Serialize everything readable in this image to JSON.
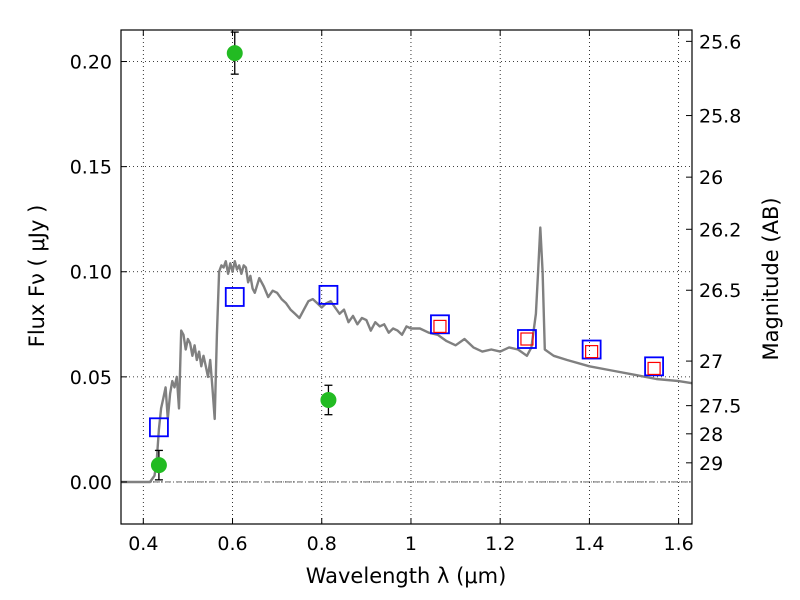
{
  "chart_data": {
    "type": "scatter",
    "xlabel": "Wavelength  λ (μm)",
    "ylabel": "Flux  Fν  ( μJy )",
    "ylabel_right": "Magnitude (AB)",
    "xlim": [
      0.35,
      1.63
    ],
    "ylim": [
      -0.02,
      0.215
    ],
    "grid": true,
    "x_ticks": [
      {
        "value": 0.4,
        "label": "0.4"
      },
      {
        "value": 0.6,
        "label": "0.6"
      },
      {
        "value": 0.8,
        "label": "0.8"
      },
      {
        "value": 1.0,
        "label": "1"
      },
      {
        "value": 1.2,
        "label": "1.2"
      },
      {
        "value": 1.4,
        "label": "1.4"
      },
      {
        "value": 1.6,
        "label": "1.6"
      }
    ],
    "y_ticks": [
      {
        "value": 0.0,
        "label": "0.00"
      },
      {
        "value": 0.05,
        "label": "0.05"
      },
      {
        "value": 0.1,
        "label": "0.10"
      },
      {
        "value": 0.15,
        "label": "0.15"
      },
      {
        "value": 0.2,
        "label": "0.20"
      }
    ],
    "right_ticks": [
      {
        "label": "25.6",
        "flux": 0.2096
      },
      {
        "label": "25.8",
        "flux": 0.1743
      },
      {
        "label": "26",
        "flux": 0.145
      },
      {
        "label": "26.2",
        "flux": 0.1202
      },
      {
        "label": "26.5",
        "flux": 0.0912
      },
      {
        "label": "27",
        "flux": 0.0575
      },
      {
        "label": "27.5",
        "flux": 0.0363
      },
      {
        "label": "28",
        "flux": 0.0229
      },
      {
        "label": "29",
        "flux": 0.0091
      }
    ],
    "model_sed": {
      "color": "#808080",
      "x": [
        0.35,
        0.4,
        0.415,
        0.425,
        0.43,
        0.435,
        0.44,
        0.445,
        0.45,
        0.455,
        0.46,
        0.465,
        0.47,
        0.475,
        0.48,
        0.485,
        0.49,
        0.495,
        0.5,
        0.505,
        0.51,
        0.515,
        0.52,
        0.525,
        0.53,
        0.535,
        0.54,
        0.545,
        0.55,
        0.555,
        0.56,
        0.565,
        0.57,
        0.575,
        0.58,
        0.585,
        0.59,
        0.595,
        0.6,
        0.605,
        0.61,
        0.615,
        0.62,
        0.625,
        0.63,
        0.635,
        0.64,
        0.645,
        0.65,
        0.66,
        0.67,
        0.68,
        0.69,
        0.7,
        0.71,
        0.72,
        0.73,
        0.74,
        0.75,
        0.76,
        0.77,
        0.78,
        0.79,
        0.8,
        0.81,
        0.82,
        0.83,
        0.84,
        0.85,
        0.86,
        0.87,
        0.88,
        0.89,
        0.9,
        0.91,
        0.92,
        0.93,
        0.94,
        0.95,
        0.96,
        0.97,
        0.98,
        0.99,
        1.0,
        1.02,
        1.04,
        1.06,
        1.08,
        1.1,
        1.12,
        1.14,
        1.16,
        1.18,
        1.2,
        1.22,
        1.24,
        1.26,
        1.27,
        1.28,
        1.285,
        1.29,
        1.295,
        1.3,
        1.32,
        1.35,
        1.4,
        1.45,
        1.5,
        1.55,
        1.6,
        1.63
      ],
      "y": [
        0.0,
        0.0,
        0.0,
        0.003,
        0.01,
        0.025,
        0.035,
        0.04,
        0.045,
        0.03,
        0.042,
        0.048,
        0.045,
        0.05,
        0.035,
        0.072,
        0.07,
        0.063,
        0.068,
        0.066,
        0.06,
        0.065,
        0.058,
        0.062,
        0.055,
        0.06,
        0.055,
        0.05,
        0.058,
        0.045,
        0.03,
        0.07,
        0.1,
        0.103,
        0.102,
        0.105,
        0.099,
        0.104,
        0.1,
        0.105,
        0.101,
        0.103,
        0.099,
        0.103,
        0.102,
        0.095,
        0.098,
        0.092,
        0.09,
        0.097,
        0.093,
        0.088,
        0.091,
        0.09,
        0.087,
        0.085,
        0.082,
        0.08,
        0.078,
        0.082,
        0.086,
        0.087,
        0.085,
        0.083,
        0.085,
        0.086,
        0.083,
        0.08,
        0.082,
        0.076,
        0.079,
        0.075,
        0.078,
        0.077,
        0.072,
        0.076,
        0.074,
        0.075,
        0.071,
        0.073,
        0.072,
        0.07,
        0.074,
        0.073,
        0.073,
        0.071,
        0.07,
        0.067,
        0.065,
        0.068,
        0.064,
        0.062,
        0.063,
        0.062,
        0.064,
        0.063,
        0.06,
        0.064,
        0.08,
        0.1,
        0.121,
        0.1,
        0.063,
        0.06,
        0.058,
        0.055,
        0.053,
        0.051,
        0.049,
        0.048,
        0.047
      ]
    },
    "series": [
      {
        "marker": "square-open",
        "color": "#0000ff",
        "x": [
          0.435,
          0.605,
          0.815,
          1.065,
          1.26,
          1.405,
          1.545
        ],
        "y": [
          0.026,
          0.088,
          0.089,
          0.075,
          0.068,
          0.063,
          0.055
        ]
      },
      {
        "marker": "square-open",
        "color": "#ff0000",
        "x": [
          1.065,
          1.26,
          1.405,
          1.545
        ],
        "y": [
          0.074,
          0.068,
          0.062,
          0.054
        ]
      },
      {
        "marker": "circle-filled",
        "color": "#22bb22",
        "x": [
          0.435,
          0.605,
          0.815
        ],
        "y": [
          0.008,
          0.204,
          0.039
        ],
        "yerr": [
          0.007,
          0.01,
          0.007
        ]
      }
    ]
  }
}
